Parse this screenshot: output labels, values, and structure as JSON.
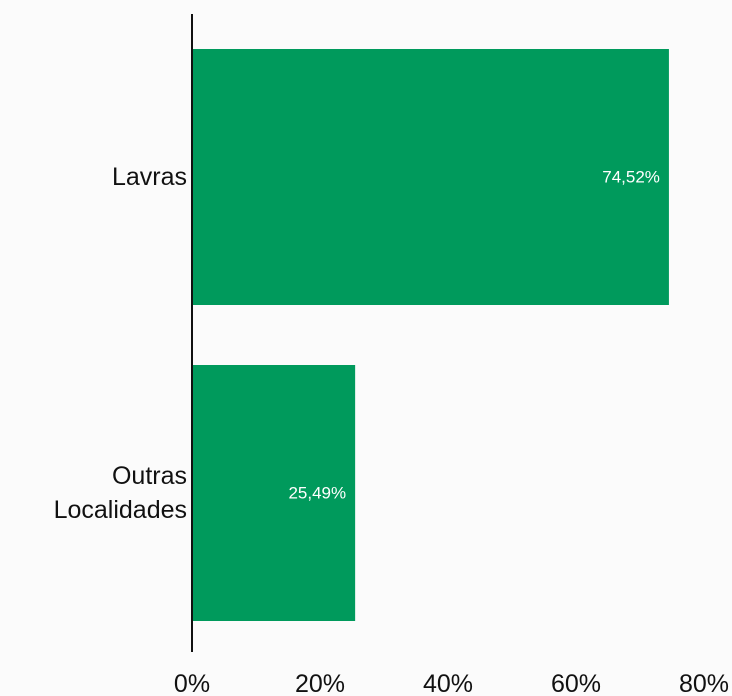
{
  "chart_data": {
    "type": "bar",
    "orientation": "horizontal",
    "categories": [
      [
        "Lavras"
      ],
      [
        "Outras",
        "Localidades"
      ]
    ],
    "values": [
      74.52,
      25.49
    ],
    "data_labels": [
      "74,52%",
      "25,49%"
    ],
    "xlim": [
      0,
      80
    ],
    "x_ticks": [
      0,
      20,
      40,
      60,
      80
    ],
    "x_tick_labels": [
      "0%",
      "20%",
      "40%",
      "60%",
      "80%"
    ],
    "title": "",
    "xlabel": "",
    "ylabel": "",
    "grid": false,
    "legend": "none",
    "bar_color": "#009a5c",
    "axis_color": "#111111",
    "background": "#fbfbfb"
  }
}
